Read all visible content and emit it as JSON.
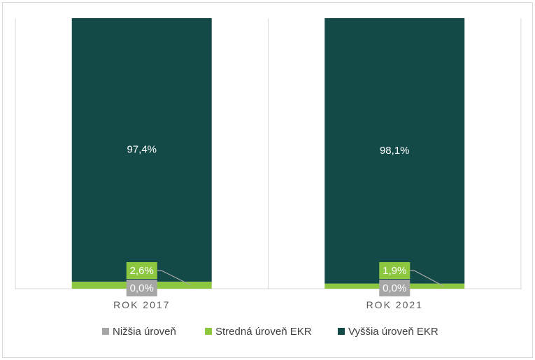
{
  "chart_data": {
    "type": "bar",
    "stacked": true,
    "categories": [
      "ROK 2017",
      "ROK 2021"
    ],
    "series": [
      {
        "name": "Nižšia úroveň",
        "values": [
          0.0,
          0.0
        ],
        "labels": [
          "0,0%",
          "0,0%"
        ],
        "color": "#a6a6a6"
      },
      {
        "name": "Stredná úroveň EKR",
        "values": [
          2.6,
          1.9
        ],
        "labels": [
          "2,6%",
          "1,9%"
        ],
        "color": "#8dc63f"
      },
      {
        "name": "Vyššia úroveň EKR",
        "values": [
          97.4,
          98.1
        ],
        "labels": [
          "97,4%",
          "98,1%"
        ],
        "color": "#134a48"
      }
    ],
    "ylim": [
      0,
      100
    ],
    "grid": false,
    "legend_position": "bottom"
  }
}
